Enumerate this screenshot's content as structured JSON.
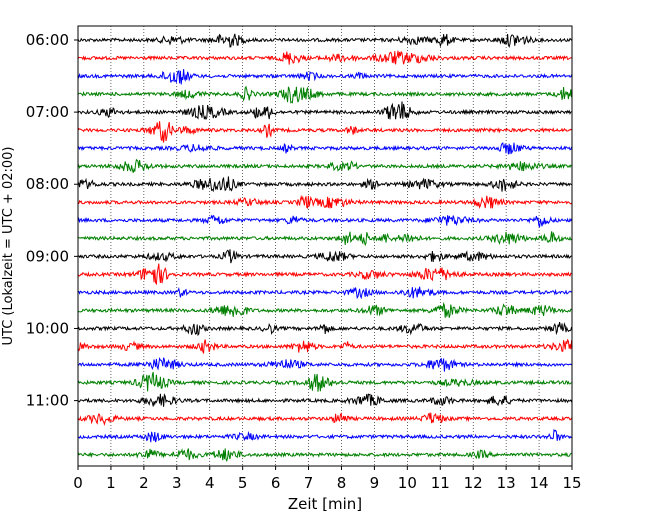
{
  "chart_data": {
    "type": "line",
    "title": "",
    "xlabel": "Zeit  [min]",
    "ylabel": "UTC (Lokalzeit = UTC + 02:00)",
    "xlim": [
      0,
      15
    ],
    "x_ticks": [
      "0",
      "1",
      "2",
      "3",
      "4",
      "5",
      "6",
      "7",
      "8",
      "9",
      "10",
      "11",
      "12",
      "13",
      "14",
      "15"
    ],
    "y_tick_labels": [
      "06:00",
      "07:00",
      "08:00",
      "09:00",
      "10:00",
      "11:00"
    ],
    "y_tick_rows": [
      0,
      4,
      8,
      12,
      16,
      20
    ],
    "trace_interval_minutes": 15,
    "trace_colors": [
      "#000000",
      "#ff0000",
      "#0000ff",
      "#008000"
    ],
    "grid": "vertical dotted at each minute",
    "series": [
      {
        "start": "06:00",
        "color": "#000000"
      },
      {
        "start": "06:15",
        "color": "#ff0000"
      },
      {
        "start": "06:30",
        "color": "#0000ff"
      },
      {
        "start": "06:45",
        "color": "#008000"
      },
      {
        "start": "07:00",
        "color": "#000000"
      },
      {
        "start": "07:15",
        "color": "#ff0000"
      },
      {
        "start": "07:30",
        "color": "#0000ff"
      },
      {
        "start": "07:45",
        "color": "#008000"
      },
      {
        "start": "08:00",
        "color": "#000000"
      },
      {
        "start": "08:15",
        "color": "#ff0000"
      },
      {
        "start": "08:30",
        "color": "#0000ff"
      },
      {
        "start": "08:45",
        "color": "#008000"
      },
      {
        "start": "09:00",
        "color": "#000000"
      },
      {
        "start": "09:15",
        "color": "#ff0000"
      },
      {
        "start": "09:30",
        "color": "#0000ff"
      },
      {
        "start": "09:45",
        "color": "#008000"
      },
      {
        "start": "10:00",
        "color": "#000000"
      },
      {
        "start": "10:15",
        "color": "#ff0000"
      },
      {
        "start": "10:30",
        "color": "#0000ff"
      },
      {
        "start": "10:45",
        "color": "#008000"
      },
      {
        "start": "11:00",
        "color": "#000000"
      },
      {
        "start": "11:15",
        "color": "#ff0000"
      },
      {
        "start": "11:30",
        "color": "#0000ff"
      },
      {
        "start": "11:45",
        "color": "#008000"
      }
    ]
  }
}
